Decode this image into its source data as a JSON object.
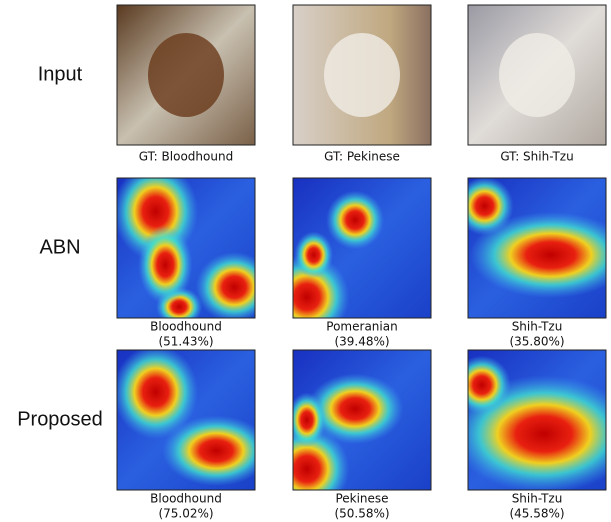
{
  "rows": [
    {
      "label": "Input",
      "cells": [
        {
          "caption": "GT: Bloodhound"
        },
        {
          "caption": "GT: Pekinese"
        },
        {
          "caption": "GT: Shih-Tzu"
        }
      ]
    },
    {
      "label": "ABN",
      "cells": [
        {
          "label": "Bloodhound",
          "confidence": "(51.43%)"
        },
        {
          "label": "Pomeranian",
          "confidence": "(39.48%)"
        },
        {
          "label": "Shih-Tzu",
          "confidence": "(35.80%)"
        }
      ]
    },
    {
      "label": "Proposed",
      "cells": [
        {
          "label": "Bloodhound",
          "confidence": "(75.02%)"
        },
        {
          "label": "Pekinese",
          "confidence": "(50.58%)"
        },
        {
          "label": "Shih-Tzu",
          "confidence": "(45.58%)"
        }
      ]
    }
  ]
}
